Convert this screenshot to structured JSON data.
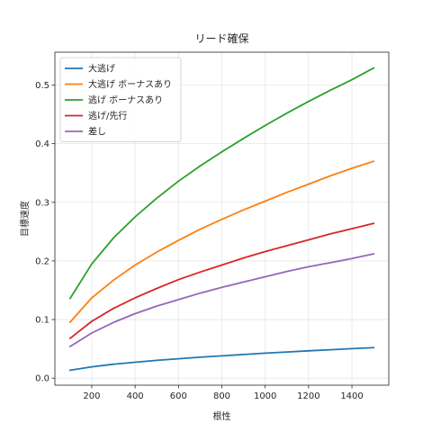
{
  "chart_data": {
    "type": "line",
    "title": "リード確保",
    "xlabel": "根性",
    "ylabel": "目標速度",
    "xlim": [
      30,
      1570
    ],
    "ylim": [
      -0.012,
      0.556
    ],
    "xticks": [
      200,
      400,
      600,
      800,
      1000,
      1200,
      1400
    ],
    "yticks": [
      0.0,
      0.1,
      0.2,
      0.3,
      0.4,
      0.5
    ],
    "grid": true,
    "legend_position": "top-left",
    "series": [
      {
        "name": "大逃げ",
        "color": "#1f77b4",
        "x": [
          100,
          200,
          300,
          400,
          500,
          600,
          700,
          800,
          900,
          1000,
          1100,
          1200,
          1300,
          1400,
          1500
        ],
        "y": [
          0.0135,
          0.0193,
          0.0237,
          0.0272,
          0.0303,
          0.0331,
          0.0358,
          0.0381,
          0.0403,
          0.0426,
          0.0447,
          0.0467,
          0.0485,
          0.0503,
          0.052
        ]
      },
      {
        "name": "大逃げ ボーナスあり",
        "color": "#ff7f0e",
        "x": [
          100,
          200,
          300,
          400,
          500,
          600,
          700,
          800,
          900,
          1000,
          1100,
          1200,
          1300,
          1400,
          1500
        ],
        "y": [
          0.0955,
          0.137,
          0.167,
          0.193,
          0.215,
          0.235,
          0.254,
          0.271,
          0.287,
          0.302,
          0.317,
          0.331,
          0.345,
          0.358,
          0.37
        ]
      },
      {
        "name": "逃げ ボーナスあり",
        "color": "#2ca02c",
        "x": [
          100,
          200,
          300,
          400,
          500,
          600,
          700,
          800,
          900,
          1000,
          1100,
          1200,
          1300,
          1400,
          1500
        ],
        "y": [
          0.136,
          0.195,
          0.239,
          0.275,
          0.307,
          0.336,
          0.362,
          0.386,
          0.409,
          0.431,
          0.452,
          0.472,
          0.491,
          0.509,
          0.529
        ]
      },
      {
        "name": "逃げ/先行",
        "color": "#d62728",
        "x": [
          100,
          200,
          300,
          400,
          500,
          600,
          700,
          800,
          900,
          1000,
          1100,
          1200,
          1300,
          1400,
          1500
        ],
        "y": [
          0.068,
          0.097,
          0.119,
          0.137,
          0.153,
          0.168,
          0.181,
          0.193,
          0.205,
          0.216,
          0.226,
          0.236,
          0.246,
          0.255,
          0.264
        ]
      },
      {
        "name": "差し",
        "color": "#9467bd",
        "x": [
          100,
          200,
          300,
          400,
          500,
          600,
          700,
          800,
          900,
          1000,
          1100,
          1200,
          1300,
          1400,
          1500
        ],
        "y": [
          0.054,
          0.077,
          0.095,
          0.11,
          0.123,
          0.134,
          0.145,
          0.155,
          0.164,
          0.173,
          0.182,
          0.19,
          0.197,
          0.204,
          0.212
        ]
      }
    ]
  }
}
